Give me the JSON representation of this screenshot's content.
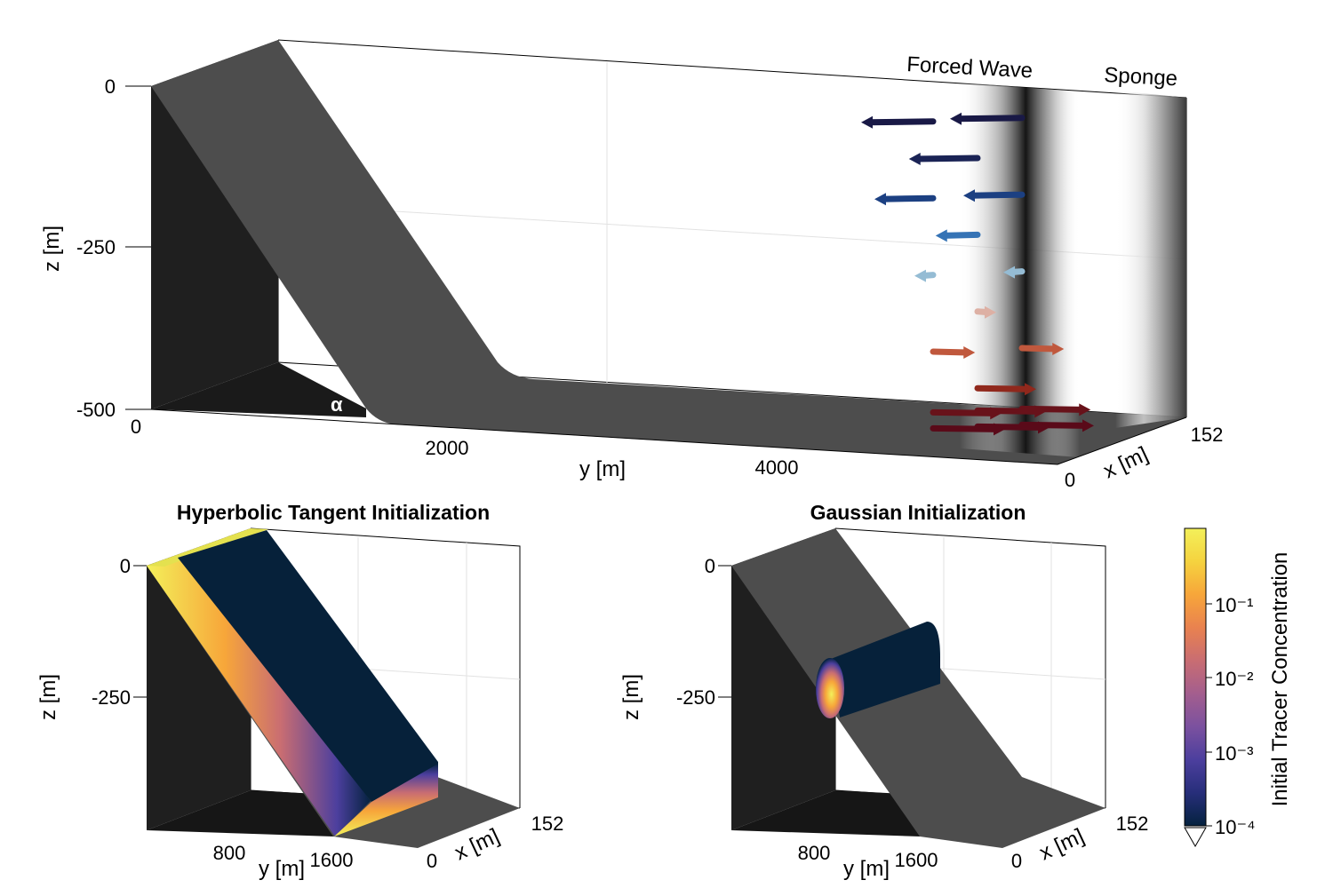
{
  "top_panel": {
    "z_axis_label": "z [m]",
    "y_axis_label": "y [m]",
    "x_axis_label": "x [m]",
    "z_ticks": [
      "0",
      "-250",
      "-500"
    ],
    "y_ticks": [
      "0",
      "2000",
      "4000"
    ],
    "x_ticks": [
      "0",
      "152"
    ],
    "angle_label": "α",
    "forced_wave_label": "Forced Wave",
    "sponge_label": "Sponge",
    "arrow_rows": [
      {
        "z": -15,
        "u": -1.0
      },
      {
        "z": -75,
        "u": -0.95
      },
      {
        "z": -135,
        "u": -0.8
      },
      {
        "z": -195,
        "u": -0.55
      },
      {
        "z": -255,
        "u": -0.2
      },
      {
        "z": -315,
        "u": 0.2
      },
      {
        "z": -375,
        "u": 0.55
      },
      {
        "z": -435,
        "u": 0.8
      },
      {
        "z": -470,
        "u": 0.95
      },
      {
        "z": -495,
        "u": 1.0
      }
    ]
  },
  "panel_left": {
    "title": "Hyperbolic Tangent Initialization",
    "z_axis_label": "z [m]",
    "y_axis_label": "y [m]",
    "x_axis_label": "x [m]",
    "z_ticks": [
      "0",
      "-250"
    ],
    "y_ticks": [
      "800",
      "1600"
    ],
    "x_ticks": [
      "0",
      "152"
    ]
  },
  "panel_right": {
    "title": "Gaussian Initialization",
    "z_axis_label": "z [m]",
    "y_axis_label": "y [m]",
    "x_axis_label": "x [m]",
    "z_ticks": [
      "0",
      "-250"
    ],
    "y_ticks": [
      "800",
      "1600"
    ],
    "x_ticks": [
      "0",
      "152"
    ]
  },
  "colorbar": {
    "label": "Initial Tracer Concentration",
    "ticks": [
      "10⁻¹",
      "10⁻²",
      "10⁻³",
      "10⁻⁴"
    ],
    "colormap": "thermal",
    "colors": [
      "#04223f",
      "#272e7a",
      "#4c3f9e",
      "#7b519f",
      "#a35e8e",
      "#c96d72",
      "#e9824f",
      "#f7a63a",
      "#f5d33f",
      "#f3f05a"
    ]
  }
}
